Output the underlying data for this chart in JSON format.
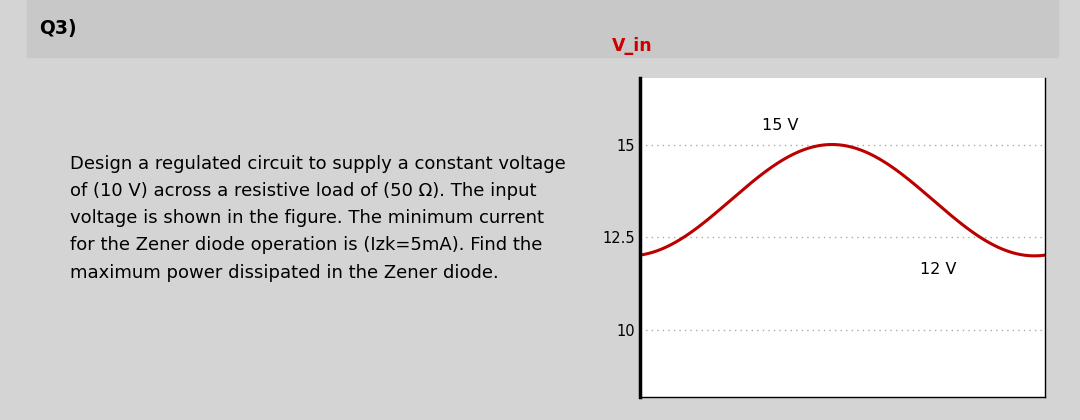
{
  "title_text": "Q3)",
  "title_bg_color": "#c8c8c8",
  "outer_bg_color": "#d4d4d4",
  "content_bg_color": "#ffffff",
  "problem_text": "Design a regulated circuit to supply a constant voltage\nof (10 V) across a resistive load of (50 Ω). The input\nvoltage is shown in the figure. The minimum current\nfor the Zener diode operation is (Izk=5mA). Find the\nmaximum power dissipated in the Zener diode.",
  "text_fontsize": 13.0,
  "title_fontsize": 13.5,
  "curve_color": "#bb0000",
  "curve_linewidth": 2.2,
  "ylabel_text": "V_in",
  "ylabel_color": "#cc0000",
  "ylabel_fontsize": 12.5,
  "yticks": [
    10,
    12.5,
    15
  ],
  "ytick_labels": [
    "10",
    "12.5",
    "15"
  ],
  "ylim": [
    8.2,
    16.8
  ],
  "annotation_15V": "15 V",
  "annotation_12V": "12 V",
  "annotation_fontsize": 11.5,
  "grid_color": "#aaaaaa",
  "grid_linewidth": 1.0,
  "sine_amplitude": 1.5,
  "sine_mean": 13.5,
  "sine_phase": -1.4,
  "spine_linewidth": 2.5
}
